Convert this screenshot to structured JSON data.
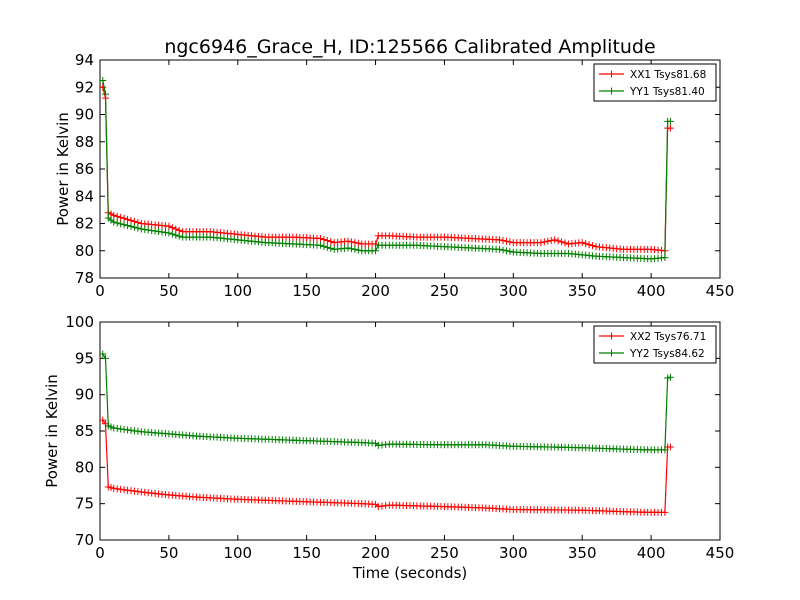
{
  "figure": {
    "title": "ngc6946_Grace_H, ID:125566 Calibrated Amplitude"
  },
  "chart_data": [
    {
      "type": "line",
      "title": "ngc6946_Grace_H, ID:125566 Calibrated Amplitude",
      "xlabel": "",
      "ylabel": "Power in Kelvin",
      "xlim": [
        0,
        450
      ],
      "ylim": [
        78,
        94
      ],
      "xticks": [
        0,
        50,
        100,
        150,
        200,
        250,
        300,
        350,
        400,
        450
      ],
      "yticks": [
        78,
        80,
        82,
        84,
        86,
        88,
        90,
        92,
        94
      ],
      "grid": false,
      "legend": "top-right",
      "marker": "+",
      "series": [
        {
          "name": "XX1 Tsys81.68",
          "color": "#ff0000",
          "x": [
            2,
            4,
            6,
            10,
            30,
            50,
            60,
            80,
            100,
            120,
            140,
            160,
            170,
            180,
            190,
            200,
            202,
            210,
            230,
            250,
            270,
            290,
            300,
            320,
            330,
            340,
            350,
            360,
            380,
            400,
            410,
            412,
            414
          ],
          "y": [
            92.0,
            91.2,
            82.8,
            82.6,
            82.0,
            81.8,
            81.4,
            81.4,
            81.2,
            81.0,
            81.0,
            80.9,
            80.6,
            80.7,
            80.5,
            80.5,
            81.1,
            81.1,
            81.0,
            81.0,
            80.9,
            80.8,
            80.6,
            80.6,
            80.8,
            80.5,
            80.6,
            80.3,
            80.1,
            80.1,
            80.0,
            89.0,
            89.0
          ]
        },
        {
          "name": "YY1 Tsys81.40",
          "color": "#008000",
          "x": [
            2,
            4,
            6,
            10,
            30,
            50,
            60,
            80,
            100,
            120,
            140,
            160,
            170,
            180,
            190,
            200,
            202,
            210,
            230,
            250,
            270,
            290,
            300,
            320,
            330,
            340,
            350,
            360,
            380,
            400,
            410,
            412,
            414
          ],
          "y": [
            92.5,
            91.5,
            82.4,
            82.1,
            81.6,
            81.3,
            81.0,
            81.0,
            80.8,
            80.6,
            80.5,
            80.4,
            80.1,
            80.2,
            80.0,
            80.0,
            80.4,
            80.4,
            80.4,
            80.3,
            80.2,
            80.1,
            79.9,
            79.8,
            79.8,
            79.8,
            79.7,
            79.6,
            79.5,
            79.4,
            79.5,
            89.5,
            89.5
          ]
        }
      ]
    },
    {
      "type": "line",
      "title": "",
      "xlabel": "Time (seconds)",
      "ylabel": "Power in Kelvin",
      "xlim": [
        0,
        450
      ],
      "ylim": [
        70,
        100
      ],
      "xticks": [
        0,
        50,
        100,
        150,
        200,
        250,
        300,
        350,
        400,
        450
      ],
      "yticks": [
        70,
        75,
        80,
        85,
        90,
        95,
        100
      ],
      "grid": false,
      "legend": "top-right",
      "marker": "+",
      "series": [
        {
          "name": "XX2 Tsys76.71",
          "color": "#ff0000",
          "x": [
            2,
            4,
            6,
            10,
            30,
            50,
            70,
            100,
            130,
            160,
            190,
            200,
            202,
            210,
            250,
            280,
            300,
            350,
            380,
            400,
            410,
            412,
            414
          ],
          "y": [
            86.5,
            86.0,
            77.3,
            77.1,
            76.6,
            76.2,
            75.9,
            75.6,
            75.4,
            75.2,
            75.0,
            74.9,
            74.6,
            74.8,
            74.6,
            74.4,
            74.2,
            74.1,
            73.9,
            73.8,
            73.8,
            82.8,
            82.8
          ]
        },
        {
          "name": "YY2 Tsys84.62",
          "color": "#008000",
          "x": [
            2,
            4,
            6,
            10,
            30,
            50,
            70,
            100,
            130,
            160,
            190,
            200,
            202,
            210,
            250,
            280,
            300,
            350,
            380,
            400,
            410,
            412,
            414
          ],
          "y": [
            95.6,
            95.0,
            85.7,
            85.4,
            84.9,
            84.6,
            84.3,
            84.0,
            83.8,
            83.6,
            83.4,
            83.3,
            83.0,
            83.2,
            83.1,
            83.1,
            82.9,
            82.7,
            82.5,
            82.4,
            82.4,
            92.3,
            92.4
          ]
        }
      ]
    }
  ]
}
